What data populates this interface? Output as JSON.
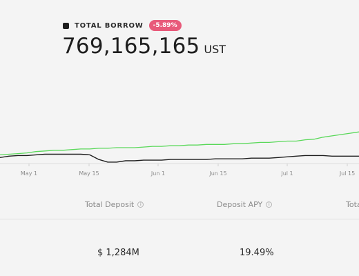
{
  "legend": {
    "label": "TOTAL BORROW",
    "change": "-5.89%"
  },
  "headline": {
    "value": "769,165,165",
    "unit": "UST"
  },
  "chart_data": {
    "type": "line",
    "x_ticks": [
      "May 1",
      "May 15",
      "Jun 1",
      "Jun 15",
      "Jul 1",
      "Jul 15"
    ],
    "series": [
      {
        "color": "#5ad85a",
        "values": [
          0.09,
          0.1,
          0.11,
          0.12,
          0.14,
          0.15,
          0.16,
          0.16,
          0.17,
          0.18,
          0.18,
          0.19,
          0.19,
          0.2,
          0.2,
          0.2,
          0.21,
          0.22,
          0.22,
          0.23,
          0.23,
          0.24,
          0.24,
          0.25,
          0.25,
          0.25,
          0.26,
          0.26,
          0.27,
          0.28,
          0.28,
          0.29,
          0.3,
          0.3,
          0.32,
          0.33,
          0.36,
          0.38,
          0.4,
          0.42,
          0.44
        ]
      },
      {
        "color": "#1e1e1e",
        "values": [
          0.05,
          0.07,
          0.08,
          0.08,
          0.09,
          0.1,
          0.1,
          0.1,
          0.1,
          0.1,
          0.09,
          0.02,
          -0.02,
          -0.02,
          0.0,
          0.0,
          0.01,
          0.01,
          0.01,
          0.02,
          0.02,
          0.02,
          0.02,
          0.02,
          0.03,
          0.03,
          0.03,
          0.03,
          0.04,
          0.04,
          0.04,
          0.05,
          0.06,
          0.07,
          0.08,
          0.08,
          0.08,
          0.07,
          0.07,
          0.07,
          0.07
        ]
      }
    ]
  },
  "columns": [
    {
      "header": "Total Deposit",
      "value": "$ 1,284M"
    },
    {
      "header": "Deposit APY",
      "value": "19.49%"
    },
    {
      "header": "Tota",
      "value": ""
    }
  ],
  "icons": {
    "info": "info-icon"
  }
}
